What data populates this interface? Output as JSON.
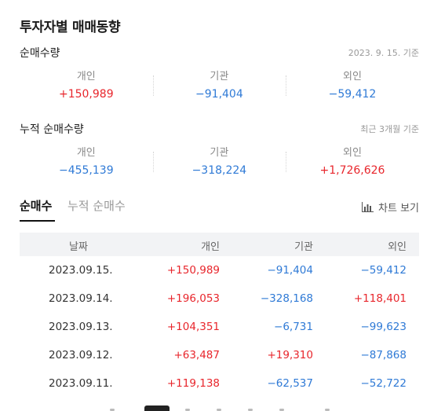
{
  "page_title": "투자자별 매매동향",
  "daily": {
    "label": "순매수량",
    "note": "2023. 9. 15. 기준",
    "items": [
      {
        "label": "개인",
        "value": "+150,989",
        "sign": "pos"
      },
      {
        "label": "기관",
        "value": "−91,404",
        "sign": "neg"
      },
      {
        "label": "외인",
        "value": "−59,412",
        "sign": "neg"
      }
    ]
  },
  "cumulative": {
    "label": "누적 순매수량",
    "note": "최근 3개월 기준",
    "items": [
      {
        "label": "개인",
        "value": "−455,139",
        "sign": "neg"
      },
      {
        "label": "기관",
        "value": "−318,224",
        "sign": "neg"
      },
      {
        "label": "외인",
        "value": "+1,726,626",
        "sign": "pos"
      }
    ]
  },
  "tabs": [
    {
      "label": "순매수",
      "active": true
    },
    {
      "label": "누적 순매수",
      "active": false
    }
  ],
  "chart_button": {
    "label": "차트 보기",
    "icon": "bar-chart-icon"
  },
  "table": {
    "headers": [
      "날짜",
      "개인",
      "기관",
      "외인"
    ],
    "rows": [
      {
        "date": "2023.09.15.",
        "v1": "+150,989",
        "s1": "pos",
        "v2": "−91,404",
        "s2": "neg",
        "v3": "−59,412",
        "s3": "neg"
      },
      {
        "date": "2023.09.14.",
        "v1": "+196,053",
        "s1": "pos",
        "v2": "−328,168",
        "s2": "neg",
        "v3": "+118,401",
        "s3": "pos"
      },
      {
        "date": "2023.09.13.",
        "v1": "+104,351",
        "s1": "pos",
        "v2": "−6,731",
        "s2": "neg",
        "v3": "−99,623",
        "s3": "neg"
      },
      {
        "date": "2023.09.12.",
        "v1": "+63,487",
        "s1": "pos",
        "v2": "+19,310",
        "s2": "pos",
        "v3": "−87,868",
        "s3": "neg"
      },
      {
        "date": "2023.09.11.",
        "v1": "+119,138",
        "s1": "pos",
        "v2": "−62,537",
        "s2": "neg",
        "v3": "−52,722",
        "s3": "neg"
      }
    ]
  },
  "colors": {
    "positive": "#e8262c",
    "negative": "#2f7ad6"
  }
}
